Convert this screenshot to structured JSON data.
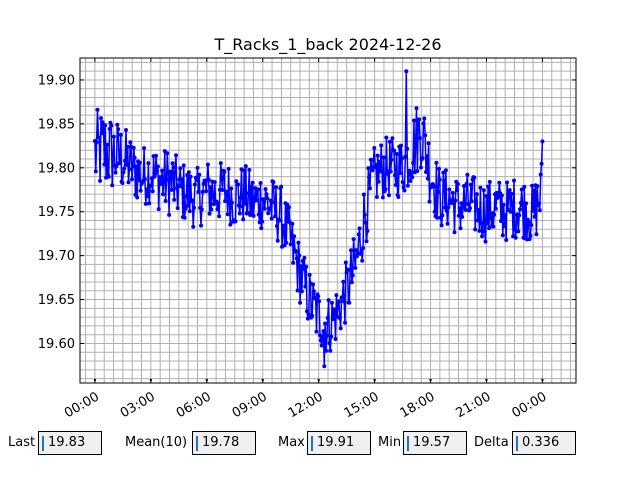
{
  "chart_data": {
    "type": "line",
    "title": "T_Racks_1_back 2024-12-26",
    "xlabel": "",
    "ylabel": "",
    "x_range_hours": [
      -0.8,
      25.8
    ],
    "ylim": [
      19.555,
      19.925
    ],
    "x_tick_labels": [
      "00:00",
      "03:00",
      "06:00",
      "09:00",
      "12:00",
      "15:00",
      "18:00",
      "21:00",
      "00:00"
    ],
    "y_tick_labels": [
      "19.60",
      "19.65",
      "19.70",
      "19.75",
      "19.80",
      "19.85",
      "19.90"
    ],
    "grid": true,
    "color": "#0000ff",
    "marker": "circle",
    "series": [
      {
        "name": "",
        "x_hours": [
          0,
          0.5,
          1,
          1.5,
          2,
          2.5,
          3,
          3.5,
          4,
          4.5,
          5,
          5.5,
          6,
          6.5,
          7,
          7.5,
          8,
          8.5,
          9,
          9.5,
          10,
          10.5,
          11,
          11.5,
          12,
          12.5,
          13,
          13.5,
          14,
          14.5,
          15,
          15.5,
          16,
          16.5,
          17,
          17.5,
          18,
          18.5,
          19,
          19.5,
          20,
          20.5,
          21,
          21.5,
          22,
          22.5,
          23,
          23.5,
          24
        ],
        "mean": [
          19.815,
          19.82,
          19.815,
          19.81,
          19.8,
          19.79,
          19.795,
          19.785,
          19.785,
          19.775,
          19.77,
          19.765,
          19.775,
          19.77,
          19.775,
          19.765,
          19.77,
          19.76,
          19.765,
          19.755,
          19.745,
          19.715,
          19.68,
          19.65,
          19.63,
          19.62,
          19.635,
          19.66,
          19.69,
          19.75,
          19.79,
          19.8,
          19.8,
          19.8,
          19.82,
          19.845,
          19.795,
          19.765,
          19.765,
          19.755,
          19.76,
          19.755,
          19.75,
          19.755,
          19.75,
          19.755,
          19.755,
          19.745,
          19.775
        ],
        "spread": [
          0.05,
          0.05,
          0.045,
          0.04,
          0.035,
          0.035,
          0.035,
          0.035,
          0.04,
          0.035,
          0.035,
          0.035,
          0.035,
          0.035,
          0.035,
          0.035,
          0.035,
          0.035,
          0.035,
          0.035,
          0.035,
          0.035,
          0.035,
          0.035,
          0.035,
          0.035,
          0.035,
          0.035,
          0.04,
          0.04,
          0.035,
          0.035,
          0.035,
          0.035,
          0.04,
          0.045,
          0.04,
          0.035,
          0.035,
          0.035,
          0.035,
          0.035,
          0.035,
          0.035,
          0.035,
          0.035,
          0.035,
          0.035,
          0.04
        ],
        "min": 19.574,
        "max": 19.91
      }
    ]
  },
  "stats": {
    "last_label": "Last",
    "last_value": "19.83",
    "mean_label": "Mean(10)",
    "mean_value": "19.78",
    "max_label": "Max",
    "max_value": "19.91",
    "min_label": "Min",
    "min_value": "19.57",
    "delta_label": "Delta",
    "delta_value": "0.336"
  }
}
